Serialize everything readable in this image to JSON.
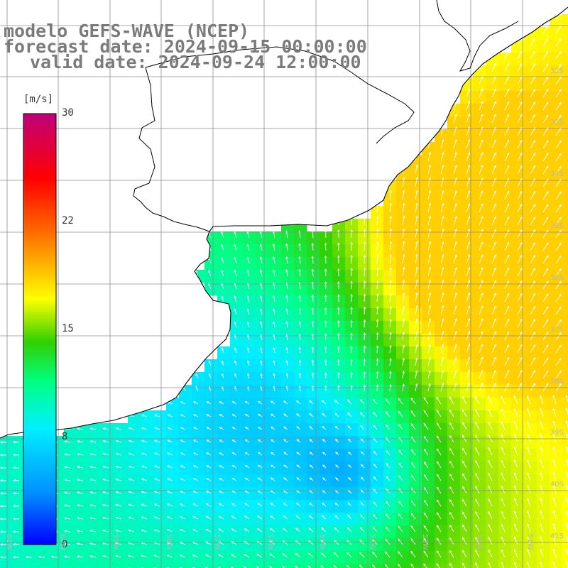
{
  "title": {
    "model": "modelo GEFS-WAVE (NCEP)",
    "forecast": "forecast date: 2024-09-15 00:00:00",
    "valid": "valid date: 2024-09-24 12:00:00"
  },
  "colorbar": {
    "unit": "[m/s]",
    "ticks": [
      "30",
      "22",
      "15",
      "8",
      "0"
    ],
    "colors": [
      "#0000ff",
      "#00b0ff",
      "#00ffff",
      "#00ff00",
      "#ffff00",
      "#ff8000",
      "#ff0000",
      "#c0007a"
    ]
  },
  "grid": {
    "lat_labels": [
      "32S",
      "33S",
      "34S",
      "35S",
      "36S",
      "37S",
      "38S",
      "39S",
      "40S",
      "41S"
    ],
    "lon_labels": [
      "61W",
      "60W",
      "59W",
      "58W",
      "57W",
      "56W",
      "55W",
      "54W",
      "53W",
      "52W",
      "51W"
    ]
  },
  "colors": {
    "land": "#ffffff",
    "coast": "#000000",
    "grid": "#8c8c8c",
    "title": "#7b7b7b",
    "arrows": "#ffffff"
  }
}
